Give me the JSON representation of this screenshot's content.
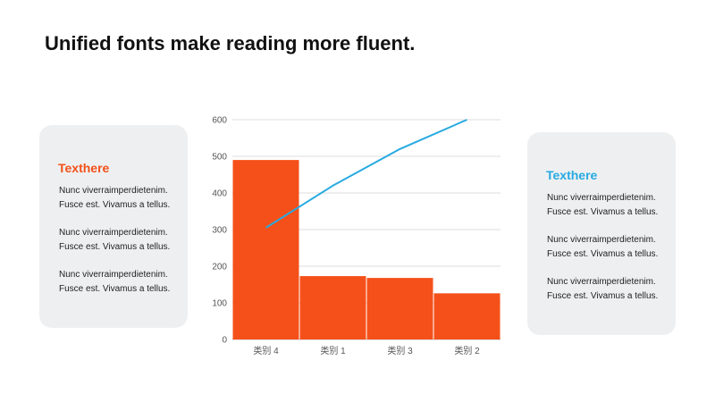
{
  "title": "Unified fonts make reading more fluent.",
  "left_card": {
    "heading": "Texthere",
    "paragraphs": [
      [
        "Nunc viverraimperdietenim.",
        "Fusce est. Vivamus a tellus."
      ],
      [
        "Nunc viverraimperdietenim.",
        "Fusce est. Vivamus a tellus."
      ],
      [
        "Nunc viverraimperdietenim.",
        "Fusce est. Vivamus a tellus."
      ]
    ]
  },
  "right_card": {
    "heading": "Texthere",
    "paragraphs": [
      [
        "Nunc viverraimperdietenim.",
        "Fusce est. Vivamus a tellus."
      ],
      [
        "Nunc viverraimperdietenim.",
        "Fusce est. Vivamus a tellus."
      ],
      [
        "Nunc viverraimperdietenim.",
        "Fusce est. Vivamus a tellus."
      ]
    ]
  },
  "colors": {
    "bar": "#f5501a",
    "line": "#27aae1",
    "left_heading": "#f25119",
    "right_heading": "#27aae1",
    "card_bg": "#eeeff1"
  },
  "chart_data": {
    "type": "bar",
    "categories": [
      "类别 4",
      "类别 1",
      "类别 3",
      "类别 2"
    ],
    "series": [
      {
        "type": "bar",
        "values": [
          490,
          173,
          168,
          126
        ]
      },
      {
        "type": "line",
        "values": [
          305,
          420,
          520,
          600
        ]
      }
    ],
    "ylim": [
      0,
      600
    ],
    "yticks": [
      0,
      100,
      200,
      300,
      400,
      500,
      600
    ],
    "grid": true,
    "legend": "none",
    "title": "",
    "xlabel": "",
    "ylabel": ""
  }
}
